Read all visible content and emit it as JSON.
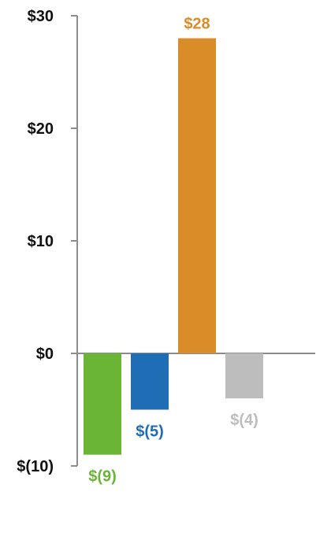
{
  "chart_data": {
    "type": "bar",
    "title": "",
    "xlabel": "",
    "ylabel": "",
    "ylim": [
      -10,
      30
    ],
    "grid": false,
    "legend": "none",
    "y_ticks": [
      30,
      20,
      10,
      0,
      -10
    ],
    "y_tick_labels": [
      "$30",
      "$20",
      "$10",
      "$0",
      "$(10)"
    ],
    "values": [
      -9,
      -5,
      28,
      -4
    ],
    "data_labels": [
      "$(9)",
      "$(5)",
      "$28",
      "$(4)"
    ],
    "bar_colors": [
      "#6ab536",
      "#1f6db4",
      "#d98c28",
      "#bdbdbd"
    ],
    "axis_color": "#8c8c8c"
  }
}
